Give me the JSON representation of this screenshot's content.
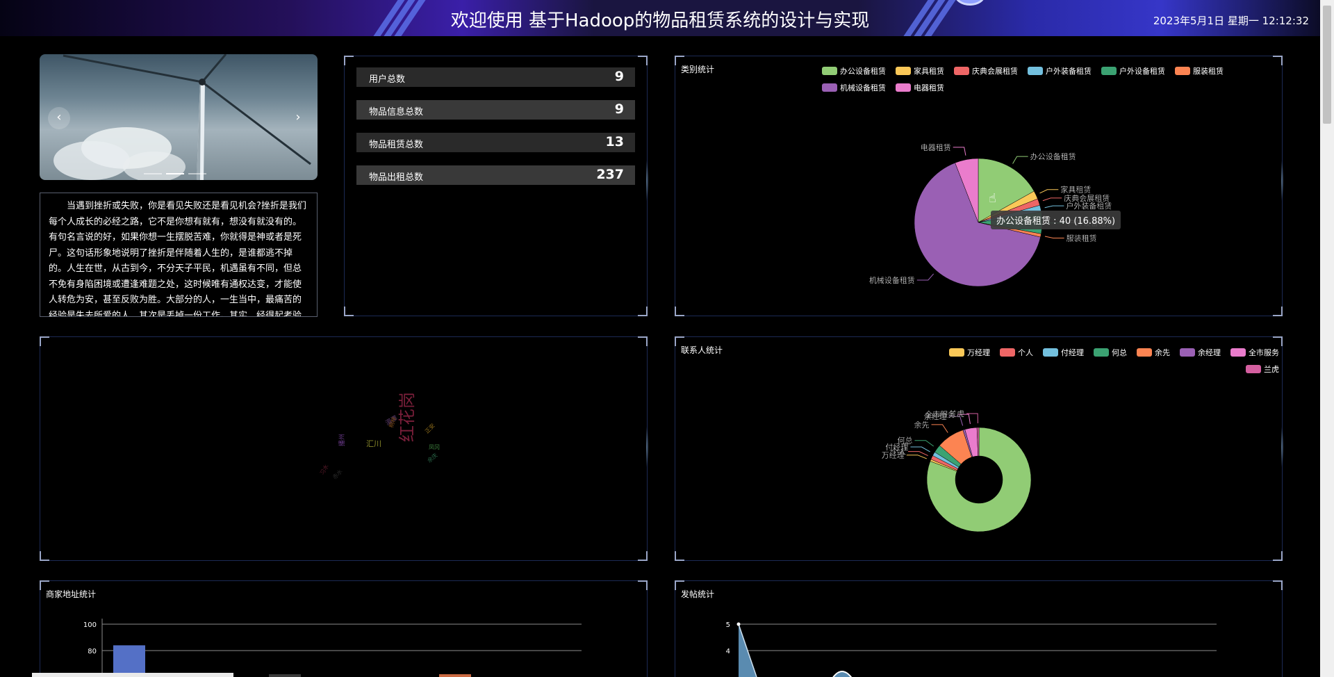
{
  "header": {
    "title": "欢迎使用 基于Hadoop的物品租赁系统的设计与实现",
    "clock": "2023年5月1日 星期一 12:12:32"
  },
  "carousel": {
    "prev_icon": "‹",
    "next_icon": "›"
  },
  "intro_text": "当遇到挫折或失败，你是看见失败还是看见机会?挫折是我们每个人成长的必经之路，它不是你想有就有，想没有就没有的。有句名言说的好，如果你想一生摆脱苦难，你就得是神或者是死尸。这句话形象地说明了挫折是伴随着人生的，是谁都逃不掉的。人生在世，从古到今，不分天子平民，机遇虽有不同，但总不免有身陷困境或遭逢难题之处，这时候唯有通权达变，才能使人转危为安，甚至反败为胜。大部分的人，一生当中，最痛苦的经验是失去所爱的人，其次是丢掉一份工作。其实，经得起考验的人，就算是被开除也不会惊慌",
  "stats": [
    {
      "label": "用户总数",
      "value": "9"
    },
    {
      "label": "物品信息总数",
      "value": "9"
    },
    {
      "label": "物品租赁总数",
      "value": "13"
    },
    {
      "label": "物品出租总数",
      "value": "237"
    }
  ],
  "category_chart": {
    "title": "类别统计",
    "tooltip": "办公设备租赁 : 40 (16.88%)",
    "legend": [
      {
        "name": "办公设备租赁",
        "color": "#91cc75"
      },
      {
        "name": "家具租赁",
        "color": "#fac858"
      },
      {
        "name": "庆典会展租赁",
        "color": "#ee6666"
      },
      {
        "name": "户外装备租赁",
        "color": "#73c0de"
      },
      {
        "name": "户外设备租赁",
        "color": "#3ba272"
      },
      {
        "name": "服装租赁",
        "color": "#fc8452"
      },
      {
        "name": "机械设备租赁",
        "color": "#9a60b4"
      },
      {
        "name": "电器租赁",
        "color": "#ea7ccc"
      }
    ]
  },
  "wordcloud": {
    "words": [
      {
        "text": "红花岗",
        "color": "#7a1f3a",
        "size": 24,
        "rotate": -90
      },
      {
        "text": "汇川",
        "color": "#8a8a2a",
        "size": 11,
        "rotate": 0
      },
      {
        "text": "湄潭",
        "color": "#5a3a6a",
        "size": 9,
        "rotate": -30
      },
      {
        "text": "播州",
        "color": "#6a3a8a",
        "size": 9,
        "rotate": -90
      },
      {
        "text": "桐梓",
        "color": "#7a4a1a",
        "size": 8,
        "rotate": -70
      },
      {
        "text": "正安",
        "color": "#8a6a1a",
        "size": 8,
        "rotate": -45
      },
      {
        "text": "凤冈",
        "color": "#3a7a3a",
        "size": 8,
        "rotate": 0
      },
      {
        "text": "余庆",
        "color": "#2a6a4a",
        "size": 8,
        "rotate": -40
      },
      {
        "text": "习水",
        "color": "#5a1a2a",
        "size": 8,
        "rotate": -60
      },
      {
        "text": "赤水",
        "color": "#2a2a2a",
        "size": 8,
        "rotate": -45
      }
    ]
  },
  "contact_chart": {
    "title": "联系人统计",
    "legend": [
      {
        "name": "万经理",
        "color": "#fac858"
      },
      {
        "name": "个人",
        "color": "#ee6666"
      },
      {
        "name": "付经理",
        "color": "#73c0de"
      },
      {
        "name": "何总",
        "color": "#3ba272"
      },
      {
        "name": "余先",
        "color": "#fc8452"
      },
      {
        "name": "余经理",
        "color": "#9a60b4"
      },
      {
        "name": "全市服务",
        "color": "#ea7ccc"
      },
      {
        "name": "兰虎",
        "color": "#d45fa0"
      }
    ]
  },
  "address_chart": {
    "title": "商家地址统计"
  },
  "post_chart": {
    "title": "发帖统计"
  },
  "chart_data": [
    {
      "type": "pie",
      "title": "类别统计",
      "labels": [
        "办公设备租赁",
        "家具租赁",
        "庆典会展租赁",
        "户外装备租赁",
        "户外设备租赁",
        "服装租赁",
        "机械设备租赁",
        "电器租赁"
      ],
      "values": [
        40,
        5,
        4,
        4,
        13,
        2,
        155,
        14
      ],
      "colors": [
        "#91cc75",
        "#fac858",
        "#ee6666",
        "#73c0de",
        "#3ba272",
        "#fc8452",
        "#9a60b4",
        "#ea7ccc"
      ]
    },
    {
      "type": "pie",
      "title": "联系人统计",
      "labels": [
        "万经理",
        "个人",
        "付经理",
        "何总",
        "余先",
        "余经理",
        "全市服务",
        "兰虎"
      ],
      "values": [
        1,
        2,
        2,
        4,
        14,
        1,
        6,
        1
      ],
      "colors": [
        "#fac858",
        "#ee6666",
        "#73c0de",
        "#3ba272",
        "#fc8452",
        "#9a60b4",
        "#ea7ccc",
        "#d45fa0"
      ],
      "leading_value": 130,
      "leading_color": "#91cc75"
    },
    {
      "type": "bar",
      "title": "商家地址统计",
      "yticks": [
        100,
        80
      ],
      "values": [
        84
      ],
      "ylim": [
        60,
        100
      ]
    },
    {
      "type": "line",
      "title": "发帖统计",
      "yticks": [
        5,
        4
      ],
      "ylim": [
        2,
        5
      ]
    }
  ]
}
